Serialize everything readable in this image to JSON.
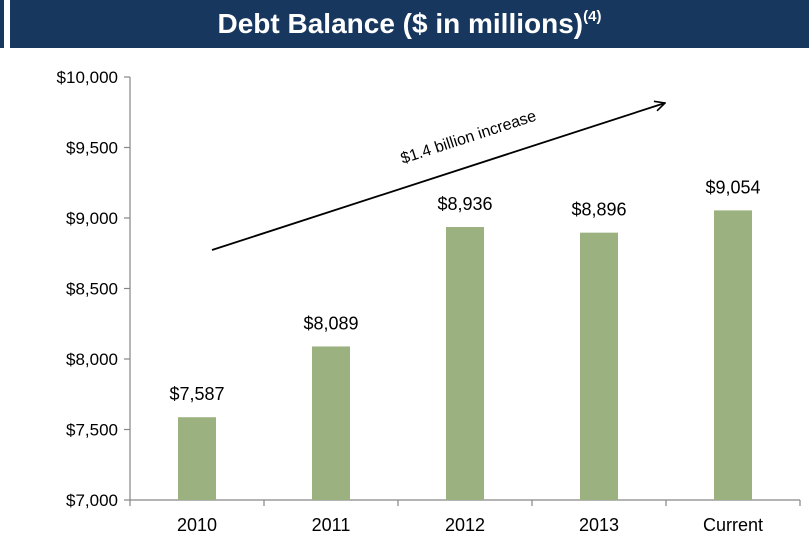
{
  "title": {
    "main": "Debt Balance ($ in millions)",
    "footnote": "(4)"
  },
  "chart_data": {
    "type": "bar",
    "title": "Debt Balance ($ in millions)(4)",
    "categories": [
      "2010",
      "2011",
      "2012",
      "2013",
      "Current"
    ],
    "values": [
      7587,
      8089,
      8936,
      8896,
      9054
    ],
    "value_labels": [
      "$7,587",
      "$8,089",
      "$8,936",
      "$8,896",
      "$9,054"
    ],
    "ylim": [
      7000,
      10000
    ],
    "yticks": [
      7000,
      7500,
      8000,
      8500,
      9000,
      9500,
      10000
    ],
    "ytick_labels": [
      "$7,000",
      "$7,500",
      "$8,000",
      "$8,500",
      "$9,000",
      "$9,500",
      "$10,000"
    ],
    "bar_color": "#9bb17f",
    "grid": false,
    "annotation": "$1.4 billion increase"
  }
}
